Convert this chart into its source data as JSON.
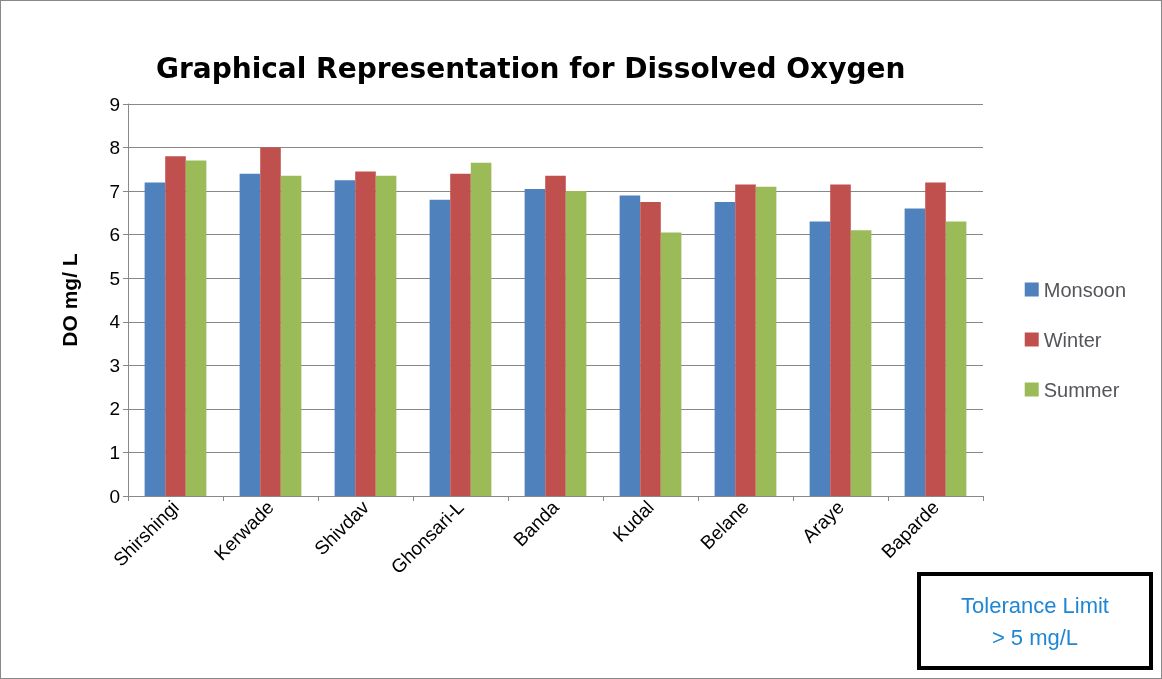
{
  "chart_data": {
    "type": "bar",
    "title": "Graphical Representation for Dissolved Oxygen",
    "ylabel": "DO mg/ L",
    "categories": [
      "Shirshingi",
      "Kerwade",
      "Shivdav",
      "Ghonsari-L",
      "Banda",
      "Kudal",
      "Belane",
      "Araye",
      "Baparde"
    ],
    "series": [
      {
        "name": "Monsoon",
        "color": "#4f81bd",
        "values": [
          7.2,
          7.4,
          7.25,
          6.8,
          7.05,
          6.9,
          6.75,
          6.3,
          6.6
        ]
      },
      {
        "name": "Winter",
        "color": "#c0504d",
        "values": [
          7.8,
          8.0,
          7.45,
          7.4,
          7.35,
          6.75,
          7.15,
          7.15,
          7.2
        ]
      },
      {
        "name": "Summer",
        "color": "#9bbb59",
        "values": [
          7.7,
          7.35,
          7.35,
          7.65,
          7.0,
          6.05,
          7.1,
          6.1,
          6.3
        ]
      }
    ],
    "ylim": [
      0,
      9
    ],
    "yticks": [
      0,
      1,
      2,
      3,
      4,
      5,
      6,
      7,
      8,
      9
    ],
    "grid": "y",
    "legend": "right",
    "annotations": [
      "Tolerance Limit\n> 5 mg/L"
    ]
  }
}
